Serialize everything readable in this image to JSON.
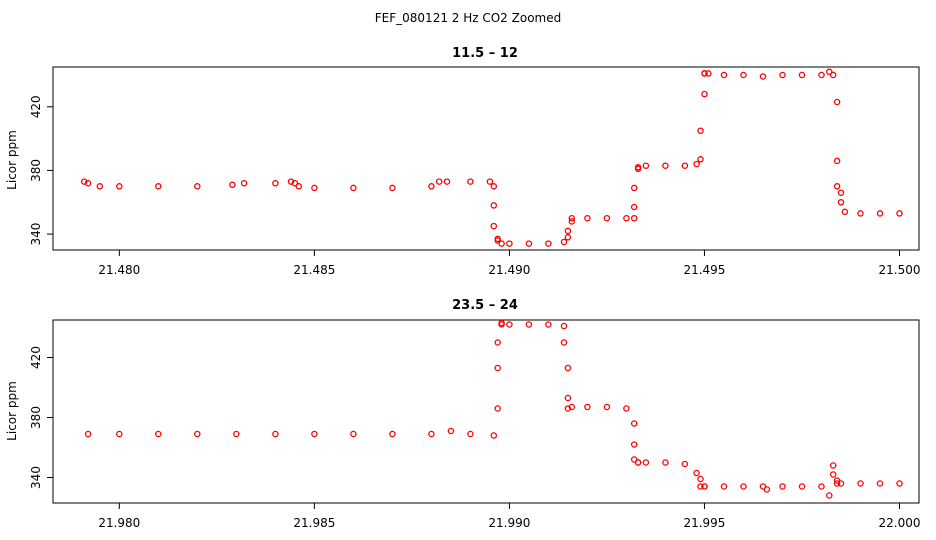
{
  "figure": {
    "title": "FEF_080121  2 Hz CO2 Zoomed"
  },
  "colors": {
    "points": "#ff0000",
    "axes": "#000000",
    "background": "#ffffff"
  },
  "chart_data": [
    {
      "type": "scatter",
      "title": "11.5 – 12",
      "xlabel": "",
      "ylabel": "Licor ppm",
      "xlim": [
        21.4783,
        21.5005
      ],
      "ylim": [
        330,
        445
      ],
      "xticks": [
        "21.480",
        "21.485",
        "21.490",
        "21.495",
        "21.500"
      ],
      "xtick_values": [
        21.48,
        21.485,
        21.49,
        21.495,
        21.5
      ],
      "yticks": [
        "340",
        "380",
        "420"
      ],
      "ytick_values": [
        340,
        380,
        420
      ],
      "grid": false,
      "marker": "open-circle",
      "series": [
        {
          "x": [
            21.4791,
            21.4792,
            21.4795,
            21.48,
            21.481,
            21.482,
            21.4829,
            21.4832,
            21.484,
            21.4844,
            21.4845,
            21.4846,
            21.485,
            21.486,
            21.487,
            21.488,
            21.4882,
            21.4884,
            21.489,
            21.4895,
            21.4896,
            21.4896,
            21.4896,
            21.4897,
            21.4897,
            21.4898,
            21.49,
            21.4905,
            21.491,
            21.4914,
            21.4915,
            21.4915,
            21.4916,
            21.4916,
            21.492,
            21.4925,
            21.493,
            21.4932,
            21.4932,
            21.4932,
            21.4933,
            21.4933,
            21.4935,
            21.494,
            21.4945,
            21.4948,
            21.4949,
            21.4949,
            21.495,
            21.495,
            21.495,
            21.4951,
            21.4955,
            21.496,
            21.4965,
            21.497,
            21.4975,
            21.498,
            21.4982,
            21.4983,
            21.4984,
            21.4984,
            21.4984,
            21.4985,
            21.4985,
            21.4986,
            21.499,
            21.4995,
            21.5
          ],
          "y": [
            373,
            372,
            370,
            370,
            370,
            370,
            371,
            372,
            372,
            373,
            372,
            370,
            369,
            369,
            369,
            370,
            373,
            373,
            373,
            373,
            370,
            358,
            345,
            337,
            336,
            334,
            334,
            334,
            334,
            335,
            338,
            342,
            348,
            350,
            350,
            350,
            350,
            350,
            357,
            369,
            381,
            382,
            383,
            383,
            383,
            384,
            387,
            405,
            428,
            441,
            441,
            441,
            440,
            440,
            439,
            440,
            440,
            440,
            442,
            440,
            423,
            386,
            370,
            366,
            360,
            354,
            353,
            353,
            353
          ]
        }
      ]
    },
    {
      "type": "scatter",
      "title": "23.5 – 24",
      "xlabel": "",
      "ylabel": "Licor ppm",
      "xlim": [
        21.9783,
        22.0005
      ],
      "ylim": [
        323,
        445
      ],
      "xticks": [
        "21.980",
        "21.985",
        "21.990",
        "21.995",
        "22.000"
      ],
      "xtick_values": [
        21.98,
        21.985,
        21.99,
        21.995,
        22.0
      ],
      "yticks": [
        "340",
        "380",
        "420"
      ],
      "ytick_values": [
        340,
        380,
        420
      ],
      "grid": false,
      "marker": "open-circle",
      "series": [
        {
          "x": [
            21.9792,
            21.98,
            21.981,
            21.982,
            21.983,
            21.984,
            21.985,
            21.986,
            21.987,
            21.988,
            21.9885,
            21.989,
            21.9896,
            21.9897,
            21.9897,
            21.9897,
            21.9898,
            21.9898,
            21.99,
            21.9905,
            21.991,
            21.9914,
            21.9914,
            21.9915,
            21.9915,
            21.9915,
            21.9916,
            21.992,
            21.9925,
            21.993,
            21.9932,
            21.9932,
            21.9932,
            21.9933,
            21.9933,
            21.9935,
            21.994,
            21.9945,
            21.9948,
            21.9949,
            21.9949,
            21.995,
            21.995,
            21.9955,
            21.996,
            21.9965,
            21.9966,
            21.997,
            21.9975,
            21.998,
            21.9982,
            21.9983,
            21.9983,
            21.9984,
            21.9984,
            21.9985,
            21.999,
            21.9995,
            22.0
          ],
          "y": [
            369,
            369,
            369,
            369,
            369,
            369,
            369,
            369,
            369,
            369,
            371,
            369,
            368,
            386,
            413,
            430,
            442,
            443,
            442,
            442,
            442,
            441,
            430,
            413,
            393,
            386,
            387,
            387,
            387,
            386,
            376,
            362,
            352,
            350,
            350,
            350,
            350,
            349,
            343,
            339,
            334,
            334,
            334,
            334,
            334,
            334,
            332,
            334,
            334,
            334,
            328,
            348,
            342,
            338,
            336,
            336,
            336,
            336,
            336
          ]
        }
      ]
    }
  ]
}
